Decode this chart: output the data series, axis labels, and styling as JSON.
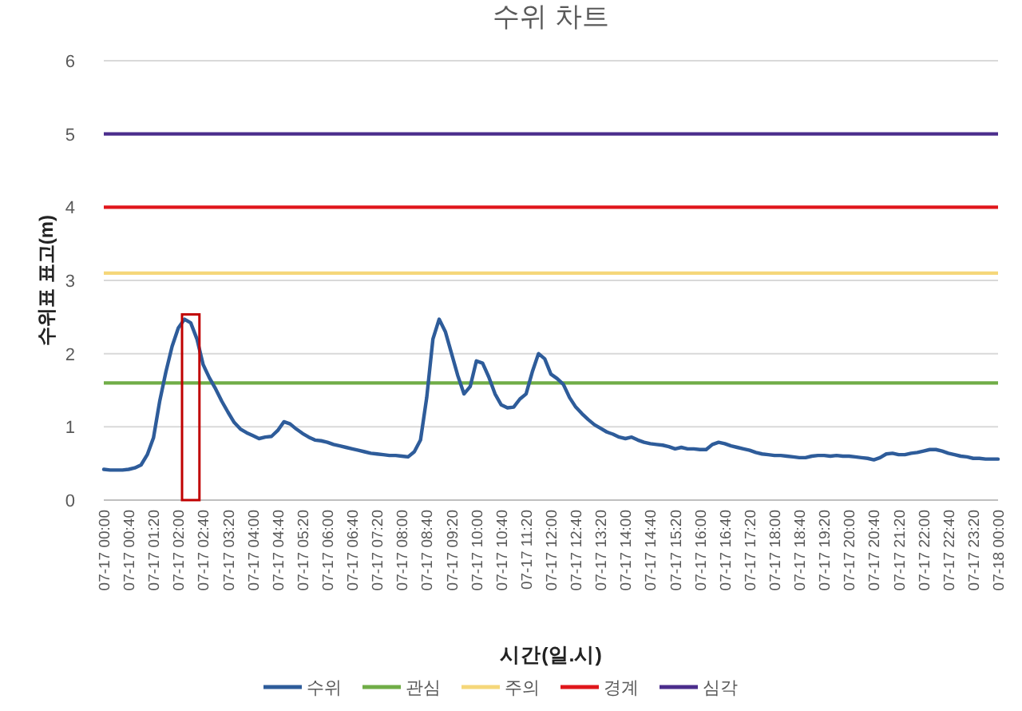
{
  "chart_data": {
    "type": "line",
    "title": "수위 차트",
    "xlabel": "시간(일.시)",
    "ylabel": "수위표 표고(m)",
    "categories": [
      "07-17 00:00",
      null,
      null,
      null,
      "07-17 00:40",
      null,
      null,
      null,
      "07-17 01:20",
      null,
      null,
      null,
      "07-17 02:00",
      null,
      null,
      null,
      "07-17 02:40",
      null,
      null,
      null,
      "07-17 03:20",
      null,
      null,
      null,
      "07-17 04:00",
      null,
      null,
      null,
      "07-17 04:40",
      null,
      null,
      null,
      "07-17 05:20",
      null,
      null,
      null,
      "07-17 06:00",
      null,
      null,
      null,
      "07-17 06:40",
      null,
      null,
      null,
      "07-17 07:20",
      null,
      null,
      null,
      "07-17 08:00",
      null,
      null,
      null,
      "07-17 08:40",
      null,
      null,
      null,
      "07-17 09:20",
      null,
      null,
      null,
      "07-17 10:00",
      null,
      null,
      null,
      "07-17 10:40",
      null,
      null,
      null,
      "07-17 11:20",
      null,
      null,
      null,
      "07-17 12:00",
      null,
      null,
      null,
      "07-17 12:40",
      null,
      null,
      null,
      "07-17 13:20",
      null,
      null,
      null,
      "07-17 14:00",
      null,
      null,
      null,
      "07-17 14:40",
      null,
      null,
      null,
      "07-17 15:20",
      null,
      null,
      null,
      "07-17 16:00",
      null,
      null,
      null,
      "07-17 16:40",
      null,
      null,
      null,
      "07-17 17:20",
      null,
      null,
      null,
      "07-17 18:00",
      null,
      null,
      null,
      "07-17 18:40",
      null,
      null,
      null,
      "07-17 19:20",
      null,
      null,
      null,
      "07-17 20:00",
      null,
      null,
      null,
      "07-17 20:40",
      null,
      null,
      null,
      "07-17 21:20",
      null,
      null,
      null,
      "07-17 22:00",
      null,
      null,
      null,
      "07-17 22:40",
      null,
      null,
      null,
      "07-17 23:20",
      null,
      null,
      null,
      "07-18 00:00"
    ],
    "series": [
      {
        "name": "수위",
        "color": "#2e5c9a",
        "values": [
          0.42,
          0.41,
          0.41,
          0.41,
          0.42,
          0.44,
          0.48,
          0.62,
          0.85,
          1.35,
          1.75,
          2.1,
          2.35,
          2.47,
          2.42,
          2.2,
          1.85,
          1.67,
          1.52,
          1.35,
          1.2,
          1.06,
          0.97,
          0.92,
          0.88,
          0.84,
          0.86,
          0.87,
          0.95,
          1.07,
          1.04,
          0.97,
          0.91,
          0.86,
          0.82,
          0.81,
          0.79,
          0.76,
          0.74,
          0.72,
          0.7,
          0.68,
          0.66,
          0.64,
          0.63,
          0.62,
          0.61,
          0.61,
          0.6,
          0.59,
          0.66,
          0.82,
          1.4,
          2.2,
          2.47,
          2.3,
          2.0,
          1.7,
          1.45,
          1.55,
          1.9,
          1.87,
          1.68,
          1.45,
          1.3,
          1.26,
          1.27,
          1.38,
          1.45,
          1.75,
          2.0,
          1.93,
          1.72,
          1.66,
          1.58,
          1.4,
          1.27,
          1.18,
          1.1,
          1.03,
          0.98,
          0.93,
          0.9,
          0.86,
          0.84,
          0.86,
          0.82,
          0.79,
          0.77,
          0.76,
          0.75,
          0.73,
          0.7,
          0.72,
          0.7,
          0.7,
          0.69,
          0.69,
          0.76,
          0.79,
          0.77,
          0.74,
          0.72,
          0.7,
          0.68,
          0.65,
          0.63,
          0.62,
          0.61,
          0.61,
          0.6,
          0.59,
          0.58,
          0.58,
          0.6,
          0.61,
          0.61,
          0.6,
          0.61,
          0.6,
          0.6,
          0.59,
          0.58,
          0.57,
          0.55,
          0.58,
          0.63,
          0.64,
          0.62,
          0.62,
          0.64,
          0.65,
          0.67,
          0.69,
          0.69,
          0.67,
          0.64,
          0.62,
          0.6,
          0.59,
          0.57,
          0.57,
          0.56,
          0.56,
          0.56
        ]
      }
    ],
    "ref_lines": [
      {
        "axis": "y",
        "value": 1.6,
        "label": "관심",
        "color": "#70ad47"
      },
      {
        "axis": "y",
        "value": 3.1,
        "label": "주의",
        "color": "#f5d77a"
      },
      {
        "axis": "y",
        "value": 4,
        "label": "경계",
        "color": "#e0161b"
      },
      {
        "axis": "y",
        "value": 5,
        "label": "심각",
        "color": "#4b2d8c"
      }
    ],
    "ylim": [
      0,
      6
    ],
    "yticks": [
      0,
      1,
      2,
      3,
      4,
      5,
      6
    ],
    "grid": "y",
    "legend": "bottom",
    "marker": "none",
    "line_style": "solid"
  }
}
